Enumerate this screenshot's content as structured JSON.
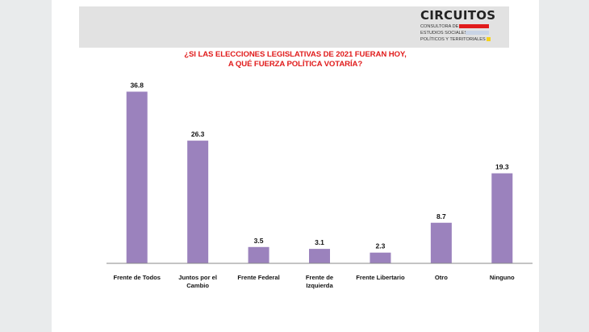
{
  "brand": {
    "name": "CIRCUITOS",
    "lines": [
      "CONSULTORA DE",
      "ESTUDIOS SOCIALES,",
      "POLÍTICOS Y TERRITORIALES"
    ],
    "colors": [
      "#e11b1b",
      "#c9d4e6",
      "#f5d21c"
    ]
  },
  "chart_data": {
    "type": "bar",
    "title_lines": [
      "¿SI LAS ELECCIONES LEGISLATIVAS DE 2021 FUERAN HOY,",
      "A QUÉ FUERZA POLÍTICA VOTARÍA?"
    ],
    "categories": [
      [
        "Frente de Todos"
      ],
      [
        "Juntos por el",
        "Cambio"
      ],
      [
        "Frente Federal"
      ],
      [
        "Frente de",
        "Izquierda"
      ],
      [
        "Frente Libertario"
      ],
      [
        "Otro"
      ],
      [
        "Ninguno"
      ]
    ],
    "values": [
      36.8,
      26.3,
      3.5,
      3.1,
      2.3,
      8.7,
      19.3
    ],
    "value_labels": [
      "36.8",
      "26.3",
      "3.5",
      "3.1",
      "2.3",
      "8.7",
      "19.3"
    ],
    "bar_color": "#9b82bd",
    "ylim": [
      0,
      40
    ],
    "grid": false,
    "legend": "none"
  }
}
